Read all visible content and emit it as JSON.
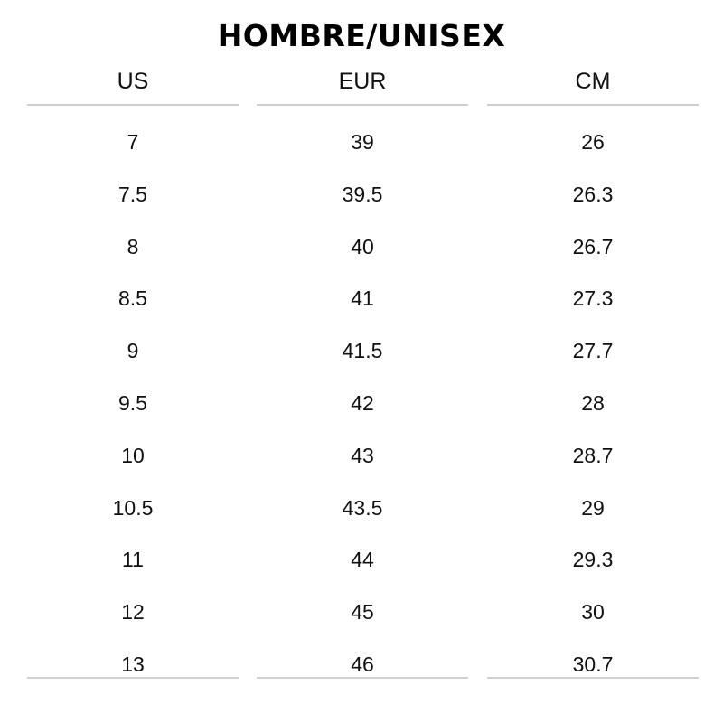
{
  "title": "HOMBRE/UNISEX",
  "columns": [
    {
      "header": "US",
      "values": [
        "7",
        "7.5",
        "8",
        "8.5",
        "9",
        "9.5",
        "10",
        "10.5",
        "11",
        "12",
        "13"
      ]
    },
    {
      "header": "EUR",
      "values": [
        "39",
        "39.5",
        "40",
        "41",
        "41.5",
        "42",
        "43",
        "43.5",
        "44",
        "45",
        "46"
      ]
    },
    {
      "header": "CM",
      "values": [
        "26",
        "26.3",
        "26.7",
        "27.3",
        "27.7",
        "28",
        "28.7",
        "29",
        "29.3",
        "30",
        "30.7"
      ]
    }
  ]
}
